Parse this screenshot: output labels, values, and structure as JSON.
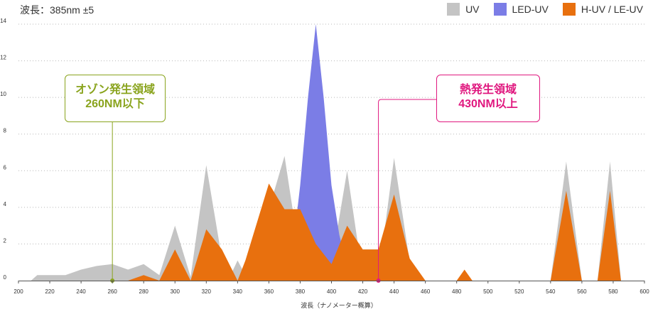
{
  "header": {
    "wavelength_caption": "波長：385nm ±5"
  },
  "legend": {
    "items": [
      {
        "label": "UV",
        "color": "#c4c4c4"
      },
      {
        "label": "LED-UV",
        "color": "#7b7de6"
      },
      {
        "label": "H-UV / LE-UV",
        "color": "#e8700e"
      }
    ]
  },
  "callouts": {
    "ozone": {
      "line1": "オゾン発生領域",
      "line2": "260NM以下",
      "color": "#8aa41e",
      "x": 260
    },
    "heat": {
      "line1": "熱発生領域",
      "line2": "430NM以上",
      "color": "#e0187f",
      "x": 430
    }
  },
  "chart_data": {
    "type": "area",
    "xlabel": "波長（ナノメーター概算）",
    "ylabel": "",
    "xlim": [
      200,
      600
    ],
    "ylim": [
      0,
      14
    ],
    "xticks": [
      200,
      220,
      240,
      260,
      280,
      300,
      320,
      340,
      360,
      380,
      400,
      420,
      440,
      460,
      480,
      500,
      520,
      540,
      560,
      580,
      600
    ],
    "yticks": [
      0,
      2,
      4,
      6,
      8,
      10,
      12,
      14
    ],
    "grid": "horizontal dotted",
    "legend_position": "top-right",
    "series": [
      {
        "name": "UV",
        "color": "#c4c4c4",
        "points": [
          [
            208,
            0
          ],
          [
            212,
            0.3
          ],
          [
            220,
            0.3
          ],
          [
            230,
            0.3
          ],
          [
            240,
            0.6
          ],
          [
            250,
            0.8
          ],
          [
            260,
            0.9
          ],
          [
            270,
            0.6
          ],
          [
            280,
            0.9
          ],
          [
            290,
            0.3
          ],
          [
            300,
            3.0
          ],
          [
            310,
            0.2
          ],
          [
            320,
            6.3
          ],
          [
            330,
            1.2
          ],
          [
            335,
            0.2
          ],
          [
            340,
            1.1
          ],
          [
            345,
            0.3
          ],
          [
            350,
            1.5
          ],
          [
            360,
            3.9
          ],
          [
            370,
            6.8
          ],
          [
            375,
            4.0
          ],
          [
            380,
            1.8
          ],
          [
            390,
            1.5
          ],
          [
            400,
            0.9
          ],
          [
            410,
            6.0
          ],
          [
            420,
            0.2
          ],
          [
            430,
            0.2
          ],
          [
            440,
            6.7
          ],
          [
            450,
            1.0
          ],
          [
            460,
            0
          ],
          [
            540,
            0
          ],
          [
            550,
            6.5
          ],
          [
            560,
            0
          ],
          [
            570,
            0
          ],
          [
            578,
            6.5
          ],
          [
            585,
            0
          ]
        ]
      },
      {
        "name": "LED-UV",
        "color": "#7b7de6",
        "points": [
          [
            373,
            0
          ],
          [
            380,
            5.2
          ],
          [
            385,
            10
          ],
          [
            390,
            14
          ],
          [
            395,
            10
          ],
          [
            400,
            5.2
          ],
          [
            405,
            2.5
          ],
          [
            410,
            0.8
          ],
          [
            418,
            0
          ]
        ]
      },
      {
        "name": "H-UV / LE-UV",
        "color": "#e8700e",
        "points": [
          [
            270,
            0
          ],
          [
            280,
            0.3
          ],
          [
            290,
            0
          ],
          [
            300,
            1.7
          ],
          [
            310,
            0
          ],
          [
            320,
            2.8
          ],
          [
            330,
            1.7
          ],
          [
            340,
            0
          ],
          [
            345,
            1.1
          ],
          [
            360,
            5.3
          ],
          [
            370,
            3.9
          ],
          [
            380,
            3.9
          ],
          [
            390,
            2.0
          ],
          [
            400,
            0.9
          ],
          [
            410,
            3.0
          ],
          [
            420,
            1.7
          ],
          [
            430,
            1.7
          ],
          [
            440,
            4.7
          ],
          [
            450,
            1.2
          ],
          [
            460,
            0
          ],
          [
            480,
            0
          ],
          [
            485,
            0.6
          ],
          [
            490,
            0
          ],
          [
            540,
            0
          ],
          [
            550,
            4.9
          ],
          [
            560,
            0
          ],
          [
            570,
            0
          ],
          [
            578,
            4.9
          ],
          [
            585,
            0
          ]
        ]
      }
    ]
  }
}
